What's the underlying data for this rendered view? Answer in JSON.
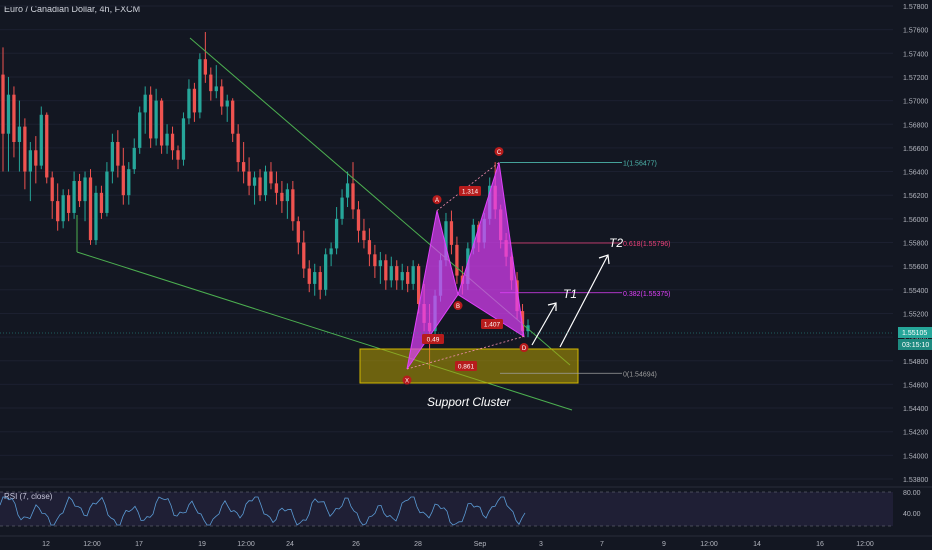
{
  "header": {
    "symbol_title": "Euro / Canadian Dollar, 4h, FXCM"
  },
  "rsi": {
    "label": "RSI (7, close)",
    "level_high": "80.00",
    "level_low": "40.00"
  },
  "price_axis": {
    "ticks": [
      "1.57800",
      "1.57600",
      "1.57400",
      "1.57200",
      "1.57000",
      "1.56800",
      "1.56600",
      "1.56400",
      "1.56200",
      "1.56000",
      "1.55800",
      "1.55600",
      "1.55400",
      "1.55200",
      "1.55000",
      "1.54800",
      "1.54600",
      "1.54400",
      "1.54200",
      "1.54000",
      "1.53800"
    ],
    "current_price": "1.55105",
    "countdown": "03:15:10"
  },
  "time_axis": {
    "ticks": [
      "12",
      "12:00",
      "17",
      "19",
      "12:00",
      "24",
      "26",
      "28",
      "Sep",
      "3",
      "7",
      "9",
      "12:00",
      "14",
      "16",
      "12:00"
    ]
  },
  "pattern": {
    "points": [
      {
        "label": "X",
        "price": 1.5473
      },
      {
        "label": "A",
        "price": 1.5607
      },
      {
        "label": "B",
        "price": 1.5536
      },
      {
        "label": "C",
        "price": 1.56477
      },
      {
        "label": "D",
        "price": 1.55005
      }
    ],
    "ratios": [
      "0.49",
      "1.314",
      "1.407",
      "0.861"
    ]
  },
  "fib_levels": [
    {
      "label": "1(1.56477)",
      "price": 1.56477
    },
    {
      "label": "0.618(1.55796)",
      "price": 1.55796
    },
    {
      "label": "0.382(1.55375)",
      "price": 1.55375
    },
    {
      "label": "0(1.54694)",
      "price": 1.54694
    }
  ],
  "annotations": {
    "t1": "T1",
    "t2": "T2",
    "support": "Support Cluster"
  },
  "colors": {
    "background": "#131722",
    "up": "#26a69a",
    "down": "#ef5350",
    "pattern": "#e040fb",
    "trendline": "#4caf50",
    "zone": "#b8a000",
    "rsi": "#5b9bd5",
    "price_line": "#26a69a"
  },
  "chart_data": {
    "type": "candlestick",
    "ylim": [
      1.538,
      1.578
    ],
    "y_ticks": [
      1.578,
      1.576,
      1.574,
      1.572,
      1.57,
      1.568,
      1.566,
      1.564,
      1.562,
      1.56,
      1.558,
      1.556,
      1.554,
      1.552,
      1.55,
      1.548,
      1.546,
      1.544,
      1.542,
      1.54,
      1.538
    ],
    "candles": [
      {
        "o": 1.5722,
        "h": 1.5745,
        "l": 1.564,
        "c": 1.5672
      },
      {
        "o": 1.5672,
        "h": 1.572,
        "l": 1.564,
        "c": 1.5705
      },
      {
        "o": 1.5705,
        "h": 1.5712,
        "l": 1.5652,
        "c": 1.5665
      },
      {
        "o": 1.5665,
        "h": 1.57,
        "l": 1.564,
        "c": 1.5678
      },
      {
        "o": 1.5678,
        "h": 1.5685,
        "l": 1.5625,
        "c": 1.564
      },
      {
        "o": 1.564,
        "h": 1.5665,
        "l": 1.5615,
        "c": 1.5658
      },
      {
        "o": 1.5658,
        "h": 1.567,
        "l": 1.563,
        "c": 1.5645
      },
      {
        "o": 1.5645,
        "h": 1.5695,
        "l": 1.5642,
        "c": 1.5688
      },
      {
        "o": 1.5688,
        "h": 1.569,
        "l": 1.563,
        "c": 1.5635
      },
      {
        "o": 1.5635,
        "h": 1.564,
        "l": 1.56,
        "c": 1.5615
      },
      {
        "o": 1.5615,
        "h": 1.563,
        "l": 1.559,
        "c": 1.5598
      },
      {
        "o": 1.5598,
        "h": 1.5625,
        "l": 1.5592,
        "c": 1.562
      },
      {
        "o": 1.562,
        "h": 1.5625,
        "l": 1.5598,
        "c": 1.5605
      },
      {
        "o": 1.5605,
        "h": 1.564,
        "l": 1.56,
        "c": 1.5632
      },
      {
        "o": 1.5632,
        "h": 1.5638,
        "l": 1.561,
        "c": 1.5615
      },
      {
        "o": 1.5615,
        "h": 1.564,
        "l": 1.5598,
        "c": 1.5635
      },
      {
        "o": 1.5635,
        "h": 1.5642,
        "l": 1.5578,
        "c": 1.5582
      },
      {
        "o": 1.5582,
        "h": 1.5628,
        "l": 1.5578,
        "c": 1.5622
      },
      {
        "o": 1.5622,
        "h": 1.5628,
        "l": 1.56,
        "c": 1.5605
      },
      {
        "o": 1.5605,
        "h": 1.5648,
        "l": 1.5602,
        "c": 1.564
      },
      {
        "o": 1.564,
        "h": 1.5672,
        "l": 1.563,
        "c": 1.5665
      },
      {
        "o": 1.5665,
        "h": 1.5675,
        "l": 1.5635,
        "c": 1.5645
      },
      {
        "o": 1.5645,
        "h": 1.566,
        "l": 1.5612,
        "c": 1.562
      },
      {
        "o": 1.562,
        "h": 1.5648,
        "l": 1.5612,
        "c": 1.5642
      },
      {
        "o": 1.5642,
        "h": 1.5668,
        "l": 1.5638,
        "c": 1.566
      },
      {
        "o": 1.566,
        "h": 1.5695,
        "l": 1.5655,
        "c": 1.569
      },
      {
        "o": 1.569,
        "h": 1.5712,
        "l": 1.5672,
        "c": 1.5705
      },
      {
        "o": 1.5705,
        "h": 1.5712,
        "l": 1.566,
        "c": 1.5668
      },
      {
        "o": 1.5668,
        "h": 1.571,
        "l": 1.5662,
        "c": 1.57
      },
      {
        "o": 1.57,
        "h": 1.5702,
        "l": 1.5655,
        "c": 1.5662
      },
      {
        "o": 1.5662,
        "h": 1.568,
        "l": 1.5655,
        "c": 1.5672
      },
      {
        "o": 1.5672,
        "h": 1.5678,
        "l": 1.565,
        "c": 1.5658
      },
      {
        "o": 1.5658,
        "h": 1.5662,
        "l": 1.5642,
        "c": 1.565
      },
      {
        "o": 1.565,
        "h": 1.569,
        "l": 1.5645,
        "c": 1.5685
      },
      {
        "o": 1.5685,
        "h": 1.5718,
        "l": 1.568,
        "c": 1.571
      },
      {
        "o": 1.571,
        "h": 1.5715,
        "l": 1.5682,
        "c": 1.569
      },
      {
        "o": 1.569,
        "h": 1.574,
        "l": 1.5685,
        "c": 1.5735
      },
      {
        "o": 1.5735,
        "h": 1.5758,
        "l": 1.5715,
        "c": 1.5722
      },
      {
        "o": 1.5722,
        "h": 1.5728,
        "l": 1.57,
        "c": 1.5708
      },
      {
        "o": 1.5708,
        "h": 1.573,
        "l": 1.5702,
        "c": 1.5712
      },
      {
        "o": 1.5712,
        "h": 1.5718,
        "l": 1.5688,
        "c": 1.5695
      },
      {
        "o": 1.5695,
        "h": 1.5705,
        "l": 1.5682,
        "c": 1.57
      },
      {
        "o": 1.57,
        "h": 1.5702,
        "l": 1.5665,
        "c": 1.5672
      },
      {
        "o": 1.5672,
        "h": 1.568,
        "l": 1.564,
        "c": 1.5648
      },
      {
        "o": 1.5648,
        "h": 1.5665,
        "l": 1.563,
        "c": 1.564
      },
      {
        "o": 1.564,
        "h": 1.5652,
        "l": 1.562,
        "c": 1.5628
      },
      {
        "o": 1.5628,
        "h": 1.564,
        "l": 1.5612,
        "c": 1.5635
      },
      {
        "o": 1.5635,
        "h": 1.5642,
        "l": 1.5615,
        "c": 1.562
      },
      {
        "o": 1.562,
        "h": 1.5645,
        "l": 1.5615,
        "c": 1.564
      },
      {
        "o": 1.564,
        "h": 1.5648,
        "l": 1.5625,
        "c": 1.563
      },
      {
        "o": 1.563,
        "h": 1.564,
        "l": 1.5612,
        "c": 1.5622
      },
      {
        "o": 1.5622,
        "h": 1.5632,
        "l": 1.5605,
        "c": 1.5615
      },
      {
        "o": 1.5615,
        "h": 1.563,
        "l": 1.56,
        "c": 1.5625
      },
      {
        "o": 1.5625,
        "h": 1.5632,
        "l": 1.559,
        "c": 1.5598
      },
      {
        "o": 1.5598,
        "h": 1.5602,
        "l": 1.557,
        "c": 1.558
      },
      {
        "o": 1.558,
        "h": 1.559,
        "l": 1.555,
        "c": 1.5558
      },
      {
        "o": 1.5558,
        "h": 1.5565,
        "l": 1.5538,
        "c": 1.5545
      },
      {
        "o": 1.5545,
        "h": 1.5562,
        "l": 1.5535,
        "c": 1.5555
      },
      {
        "o": 1.5555,
        "h": 1.556,
        "l": 1.5532,
        "c": 1.554
      },
      {
        "o": 1.554,
        "h": 1.5575,
        "l": 1.5535,
        "c": 1.557
      },
      {
        "o": 1.557,
        "h": 1.558,
        "l": 1.556,
        "c": 1.5575
      },
      {
        "o": 1.5575,
        "h": 1.561,
        "l": 1.557,
        "c": 1.56
      },
      {
        "o": 1.56,
        "h": 1.5625,
        "l": 1.5595,
        "c": 1.5618
      },
      {
        "o": 1.5618,
        "h": 1.564,
        "l": 1.561,
        "c": 1.563
      },
      {
        "o": 1.563,
        "h": 1.5648,
        "l": 1.56,
        "c": 1.5608
      },
      {
        "o": 1.5608,
        "h": 1.5615,
        "l": 1.558,
        "c": 1.559
      },
      {
        "o": 1.559,
        "h": 1.56,
        "l": 1.5575,
        "c": 1.5582
      },
      {
        "o": 1.5582,
        "h": 1.5592,
        "l": 1.556,
        "c": 1.557
      },
      {
        "o": 1.557,
        "h": 1.5578,
        "l": 1.555,
        "c": 1.556
      },
      {
        "o": 1.556,
        "h": 1.5572,
        "l": 1.5545,
        "c": 1.5565
      },
      {
        "o": 1.5565,
        "h": 1.557,
        "l": 1.554,
        "c": 1.5548
      },
      {
        "o": 1.5548,
        "h": 1.5568,
        "l": 1.5542,
        "c": 1.556
      },
      {
        "o": 1.556,
        "h": 1.5565,
        "l": 1.554,
        "c": 1.5548
      },
      {
        "o": 1.5548,
        "h": 1.5562,
        "l": 1.554,
        "c": 1.5555
      },
      {
        "o": 1.5555,
        "h": 1.556,
        "l": 1.5538,
        "c": 1.5545
      },
      {
        "o": 1.5545,
        "h": 1.5565,
        "l": 1.554,
        "c": 1.556
      },
      {
        "o": 1.556,
        "h": 1.5562,
        "l": 1.552,
        "c": 1.5528
      },
      {
        "o": 1.5528,
        "h": 1.5545,
        "l": 1.5505,
        "c": 1.5512
      },
      {
        "o": 1.5512,
        "h": 1.5528,
        "l": 1.5473,
        "c": 1.5505
      },
      {
        "o": 1.5505,
        "h": 1.554,
        "l": 1.55,
        "c": 1.5535
      },
      {
        "o": 1.5535,
        "h": 1.557,
        "l": 1.553,
        "c": 1.5565
      },
      {
        "o": 1.5565,
        "h": 1.5605,
        "l": 1.556,
        "c": 1.5598
      },
      {
        "o": 1.5598,
        "h": 1.5607,
        "l": 1.557,
        "c": 1.5578
      },
      {
        "o": 1.5578,
        "h": 1.5585,
        "l": 1.5545,
        "c": 1.5552
      },
      {
        "o": 1.5552,
        "h": 1.556,
        "l": 1.5536,
        "c": 1.5545
      },
      {
        "o": 1.5545,
        "h": 1.558,
        "l": 1.554,
        "c": 1.5575
      },
      {
        "o": 1.5575,
        "h": 1.56,
        "l": 1.557,
        "c": 1.5595
      },
      {
        "o": 1.5595,
        "h": 1.5598,
        "l": 1.5572,
        "c": 1.558
      },
      {
        "o": 1.558,
        "h": 1.5605,
        "l": 1.5575,
        "c": 1.56
      },
      {
        "o": 1.56,
        "h": 1.5635,
        "l": 1.5595,
        "c": 1.5628
      },
      {
        "o": 1.5628,
        "h": 1.5648,
        "l": 1.56,
        "c": 1.5608
      },
      {
        "o": 1.5608,
        "h": 1.5612,
        "l": 1.5575,
        "c": 1.5582
      },
      {
        "o": 1.5582,
        "h": 1.5588,
        "l": 1.556,
        "c": 1.5568
      },
      {
        "o": 1.5568,
        "h": 1.5572,
        "l": 1.554,
        "c": 1.5548
      },
      {
        "o": 1.5548,
        "h": 1.5555,
        "l": 1.5515,
        "c": 1.5522
      },
      {
        "o": 1.5522,
        "h": 1.5528,
        "l": 1.55,
        "c": 1.5505
      },
      {
        "o": 1.5505,
        "h": 1.5515,
        "l": 1.55,
        "c": 1.551
      }
    ]
  }
}
